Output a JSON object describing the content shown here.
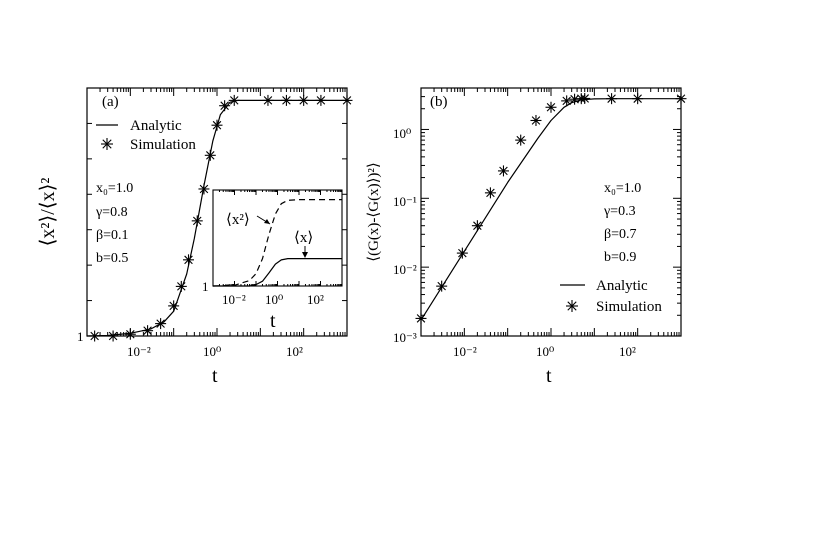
{
  "chart_data": [
    {
      "type": "line",
      "panel": "(a)",
      "xlabel": "t",
      "ylabel": "⟨x²⟩/⟨x⟩²",
      "xscale": "log",
      "yscale": "log",
      "xlim": [
        0.001,
        1000
      ],
      "ylim": [
        1,
        2.4
      ],
      "xticks": [
        "10⁻²",
        "10⁰",
        "10²"
      ],
      "yticks": [
        "1"
      ],
      "legend": {
        "position": "top-left",
        "entries": [
          "Analytic",
          "Simulation"
        ]
      },
      "params": [
        "x₀=1.0",
        "γ=0.8",
        "β=0.1",
        "b=0.5"
      ],
      "series": [
        {
          "name": "Analytic",
          "style": "solid",
          "x": [
            0.001,
            0.003,
            0.01,
            0.03,
            0.06,
            0.1,
            0.2,
            0.3,
            0.5,
            0.8,
            1.2,
            2,
            3,
            10,
            100,
            1000
          ],
          "y": [
            1.0,
            1.003,
            1.015,
            1.04,
            1.08,
            1.14,
            1.35,
            1.55,
            1.85,
            2.1,
            2.25,
            2.32,
            2.33,
            2.33,
            2.33,
            2.33
          ]
        },
        {
          "name": "Simulation",
          "style": "asterisk",
          "x": [
            0.0015,
            0.004,
            0.01,
            0.025,
            0.05,
            0.1,
            0.15,
            0.22,
            0.35,
            0.5,
            0.7,
            1.0,
            1.5,
            2.5,
            15,
            40,
            100,
            250,
            1000
          ],
          "y": [
            1.0,
            1.0,
            1.01,
            1.03,
            1.07,
            1.17,
            1.28,
            1.43,
            1.65,
            1.83,
            2.02,
            2.19,
            2.3,
            2.33,
            2.33,
            2.33,
            2.33,
            2.33,
            2.33
          ]
        }
      ],
      "inset": {
        "xscale": "log",
        "xlim": [
          0.001,
          1000
        ],
        "ylim": [
          1,
          2.4
        ],
        "xlabel": "t",
        "xticks": [
          "10⁻²",
          "10⁰",
          "10²"
        ],
        "yticks": [
          "1"
        ],
        "annotations": [
          "⟨x²⟩",
          "⟨x⟩"
        ],
        "series": [
          {
            "name": "⟨x²⟩",
            "style": "dashed",
            "x": [
              0.001,
              0.01,
              0.05,
              0.1,
              0.2,
              0.4,
              0.8,
              1.5,
              3,
              10,
              1000
            ],
            "y": [
              1.0,
              1.01,
              1.08,
              1.18,
              1.4,
              1.75,
              2.05,
              2.2,
              2.25,
              2.26,
              2.26
            ]
          },
          {
            "name": "⟨x⟩",
            "style": "solid",
            "x": [
              0.001,
              0.05,
              0.1,
              0.2,
              0.4,
              0.8,
              1.5,
              3,
              10,
              1000
            ],
            "y": [
              1.0,
              1.0,
              1.02,
              1.07,
              1.19,
              1.32,
              1.38,
              1.4,
              1.4,
              1.4
            ]
          }
        ]
      }
    },
    {
      "type": "line",
      "panel": "(b)",
      "xlabel": "t",
      "ylabel": "⟨(G(x)-⟨G(x)⟩)²⟩",
      "xscale": "log",
      "yscale": "log",
      "xlim": [
        0.001,
        1000
      ],
      "ylim": [
        0.001,
        4
      ],
      "xticks": [
        "10⁻²",
        "10⁰",
        "10²"
      ],
      "yticks": [
        "10⁻³",
        "10⁻²",
        "10⁻¹",
        "10⁰"
      ],
      "legend": {
        "position": "bottom-right",
        "entries": [
          "Analytic",
          "Simulation"
        ]
      },
      "params": [
        "x₀=1.0",
        "γ=0.3",
        "β=0.7",
        "b=0.9"
      ],
      "series": [
        {
          "name": "Analytic",
          "style": "solid",
          "x": [
            0.001,
            0.01,
            0.1,
            0.5,
            1,
            2,
            3,
            5,
            10,
            30,
            1000
          ],
          "y": [
            0.0017,
            0.017,
            0.17,
            0.75,
            1.35,
            2.1,
            2.45,
            2.7,
            2.78,
            2.8,
            2.8
          ]
        },
        {
          "name": "Simulation",
          "style": "asterisk",
          "x": [
            0.001,
            0.003,
            0.009,
            0.02,
            0.04,
            0.08,
            0.2,
            0.45,
            1.0,
            2.3,
            3.5,
            5,
            6,
            25,
            100,
            1000
          ],
          "y": [
            0.0018,
            0.0053,
            0.016,
            0.04,
            0.12,
            0.25,
            0.7,
            1.35,
            2.1,
            2.6,
            2.75,
            2.8,
            2.82,
            2.8,
            2.8,
            2.8
          ]
        }
      ]
    }
  ]
}
